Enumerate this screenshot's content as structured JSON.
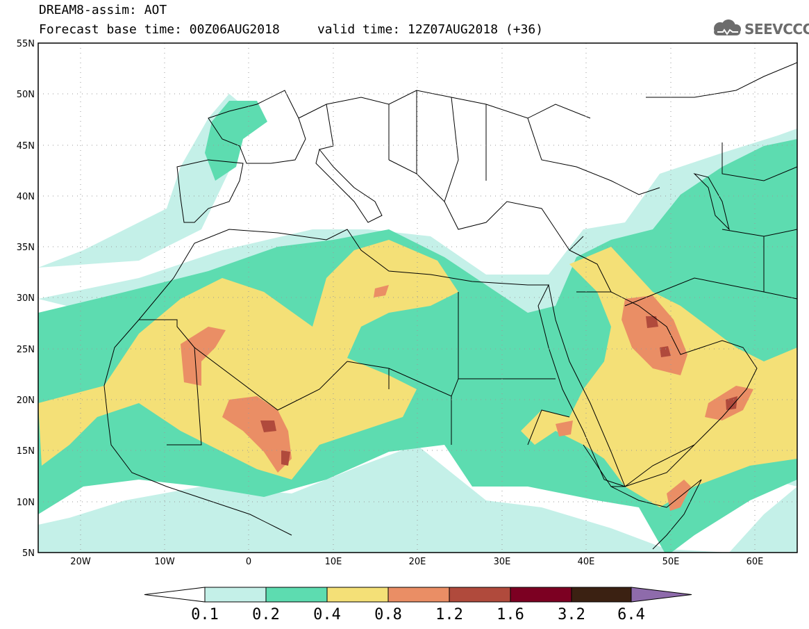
{
  "header": {
    "title": "DREAM8-assim: AOT",
    "base_time_label": "Forecast base time: 00Z06AUG2018",
    "valid_time_label": "valid time: 12Z07AUG2018 (+36)"
  },
  "logo": {
    "text": "SEEVCCC",
    "icon": "cloud-icon"
  },
  "axes": {
    "lat_ticks": [
      "55N",
      "50N",
      "45N",
      "40N",
      "35N",
      "30N",
      "25N",
      "20N",
      "15N",
      "10N",
      "5N"
    ],
    "lon_ticks": [
      "20W",
      "10W",
      "0",
      "10E",
      "20E",
      "30E",
      "40E",
      "50E",
      "60E"
    ],
    "lat_range": [
      5,
      55
    ],
    "lon_range": [
      -25,
      65
    ]
  },
  "colorbar": {
    "bins": [
      {
        "color": "#c4f0e8"
      },
      {
        "color": "#5ddcb0"
      },
      {
        "color": "#f4e077"
      },
      {
        "color": "#ea8e65"
      },
      {
        "color": "#b04a3c"
      },
      {
        "color": "#7c0022"
      },
      {
        "color": "#3b2112"
      }
    ],
    "under_color": "#ffffff",
    "over_color": "#8e6bab",
    "labels": [
      "0.1",
      "0.2",
      "0.4",
      "0.8",
      "1.2",
      "1.6",
      "3.2",
      "6.4"
    ]
  }
}
